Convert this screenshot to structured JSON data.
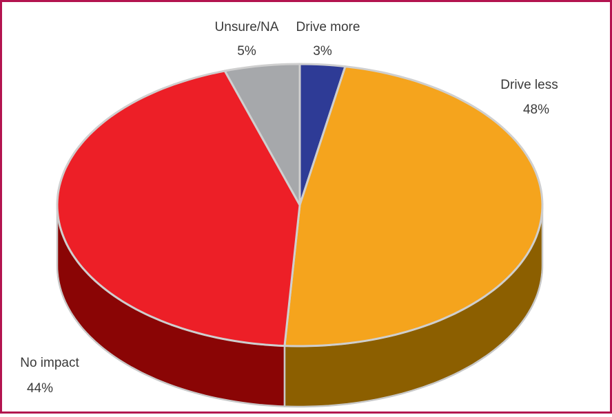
{
  "chart_data": {
    "type": "pie",
    "categories": [
      "Drive more",
      "Drive less",
      "No impact",
      "Unsure/NA"
    ],
    "values": [
      3,
      48,
      44,
      5
    ],
    "value_labels": [
      "3%",
      "48%",
      "44%",
      "5%"
    ],
    "colors": [
      "#2e3b96",
      "#f5a41d",
      "#ed1f27",
      "#a6a8ab"
    ],
    "side_colors": [
      "#1a2360",
      "#8c5f00",
      "#8a0505",
      "#6b6d70"
    ]
  }
}
